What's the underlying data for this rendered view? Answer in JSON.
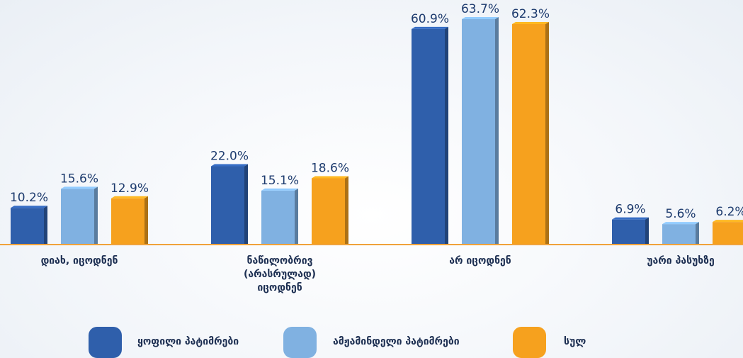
{
  "chart_data": {
    "type": "bar",
    "categories": [
      "დიახ, იცოდნენ",
      "ნაწილობრივ (არასრულად) იცოდნენ",
      "არ იცოდნენ",
      "უარი პასუხზე"
    ],
    "series": [
      {
        "name": "ყოფილი პატიმრები",
        "color": "#2f5fab",
        "values": [
          10.2,
          22.0,
          60.9,
          6.9
        ],
        "value_labels": [
          "10.2%",
          "22.0%",
          "60.9%",
          "6.9%"
        ]
      },
      {
        "name": "ამჟამინდელი პატიმრები",
        "color": "#80b1e1",
        "values": [
          15.6,
          15.1,
          63.7,
          5.6
        ],
        "value_labels": [
          "15.6%",
          "15.1%",
          "63.7%",
          "5.6%"
        ]
      },
      {
        "name": "სულ",
        "color": "#f6a11e",
        "values": [
          12.9,
          18.6,
          62.3,
          6.2
        ],
        "value_labels": [
          "12.9%",
          "18.6%",
          "62.3%",
          "6.2%"
        ]
      }
    ]
  }
}
